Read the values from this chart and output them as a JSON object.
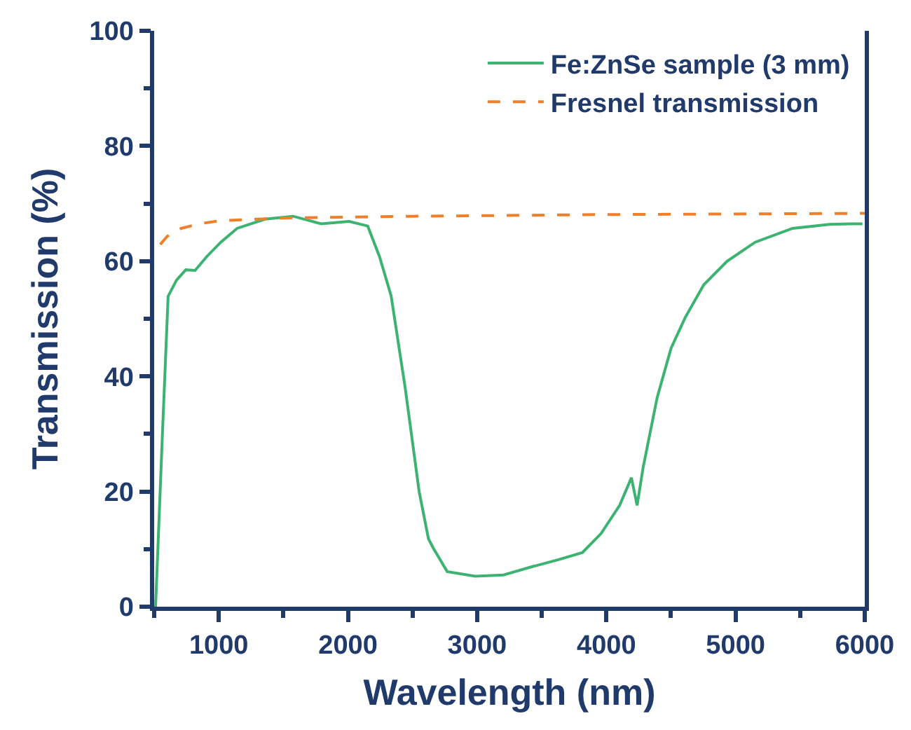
{
  "chart_data": {
    "type": "line",
    "xlabel": "Wavelength (nm)",
    "ylabel": "Transmission (%)",
    "xlim": [
      500,
      6000
    ],
    "xticks": [
      1000,
      2000,
      3000,
      4000,
      5000,
      6000
    ],
    "ylim": [
      0,
      100
    ],
    "yticks": [
      0,
      20,
      40,
      60,
      80,
      100
    ],
    "legend": "top right",
    "series": [
      {
        "name": "Fe:ZnSe sample (3 mm)",
        "color": "#3cb371",
        "line_style": "solid",
        "x": [
          511,
          565,
          608,
          673,
          745,
          817,
          907,
          1016,
          1142,
          1359,
          1576,
          1792,
          2009,
          2153,
          2244,
          2334,
          2443,
          2551,
          2623,
          2660,
          2768,
          2985,
          3201,
          3418,
          3634,
          3815,
          3959,
          4103,
          4194,
          4238,
          4284,
          4393,
          4501,
          4610,
          4754,
          4935,
          5152,
          5441,
          5729,
          5891,
          5982
        ],
        "values": [
          0,
          30.6,
          53.9,
          56.7,
          58.5,
          58.4,
          60.8,
          63.3,
          65.7,
          67.3,
          67.8,
          66.5,
          66.9,
          66.1,
          60.8,
          54,
          38,
          20,
          11.8,
          10.2,
          6.1,
          5.3,
          5.5,
          6.9,
          8.2,
          9.4,
          12.7,
          17.6,
          22.4,
          17.6,
          24.1,
          36.3,
          44.9,
          50.2,
          55.9,
          60,
          63.3,
          65.7,
          66.4,
          66.5,
          66.5
        ]
      },
      {
        "name": "Fresnel transmission",
        "color": "#f07f2a",
        "line_style": "dashed",
        "x": [
          547,
          600,
          709,
          850,
          1000,
          1500,
          2500,
          4000,
          6000
        ],
        "values": [
          62.9,
          64.3,
          65.7,
          66.5,
          67.0,
          67.5,
          67.8,
          68.1,
          68.3
        ]
      }
    ]
  }
}
